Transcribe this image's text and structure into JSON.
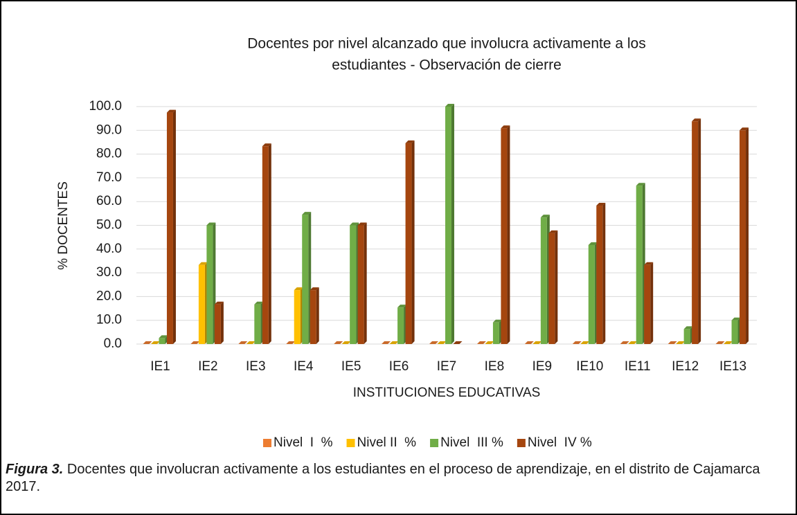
{
  "chart_data": {
    "type": "bar",
    "title": [
      "Docentes por nivel alcanzado que   involucra activamente a los",
      "estudiantes - Observación de cierre"
    ],
    "x_label": "INSTITUCIONES EDUCATIVAS",
    "y_label": "% DOCENTES",
    "categories": [
      "IE1",
      "IE2",
      "IE3",
      "IE4",
      "IE5",
      "IE6",
      "IE7",
      "IE8",
      "IE9",
      "IE10",
      "IE11",
      "IE12",
      "IE13"
    ],
    "series": [
      {
        "name": "Nivel  I  %",
        "color": "#ed7d31",
        "values": [
          0,
          0,
          0,
          0,
          0,
          0,
          0,
          0,
          0,
          0,
          0,
          0,
          0
        ]
      },
      {
        "name": "Nivel II  %",
        "color": "#ffc000",
        "values": [
          0,
          33.3,
          0,
          22.7,
          0,
          0,
          0,
          0,
          0,
          0,
          0,
          0,
          0
        ]
      },
      {
        "name": "Nivel  III %",
        "color": "#70ad47",
        "values": [
          2.5,
          50,
          16.7,
          54.5,
          50,
          15.4,
          100,
          9.1,
          53.3,
          41.7,
          66.7,
          6.3,
          10
        ]
      },
      {
        "name": "Nivel  IV %",
        "color": "#a5460f",
        "values": [
          97.5,
          16.7,
          83.3,
          22.7,
          50,
          84.6,
          0,
          90.9,
          46.7,
          58.3,
          33.3,
          93.8,
          90
        ]
      }
    ],
    "ylim": [
      0,
      100
    ],
    "yticks": [
      {
        "value": 0,
        "label": "0.0"
      },
      {
        "value": 10,
        "label": "10.0"
      },
      {
        "value": 20,
        "label": "20.0"
      },
      {
        "value": 30,
        "label": "30.0"
      },
      {
        "value": 40,
        "label": "40.0"
      },
      {
        "value": 50,
        "label": "50.0"
      },
      {
        "value": 60,
        "label": "60.0"
      },
      {
        "value": 70,
        "label": "70.0"
      },
      {
        "value": 80,
        "label": "80.0"
      },
      {
        "value": 90,
        "label": "90.0"
      },
      {
        "value": 100,
        "label": "100.0"
      }
    ],
    "grid": true,
    "legend": "bottom",
    "caption": {
      "label": "Figura 3.",
      "text": " Docentes que involucran activamente a los estudiantes en el proceso de aprendizaje, en el distrito de Cajamarca 2017."
    }
  }
}
